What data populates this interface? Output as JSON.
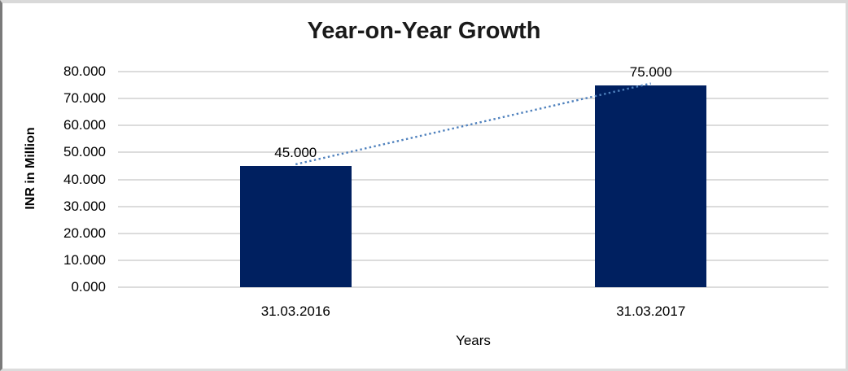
{
  "window": {
    "background": "#ffffff",
    "frame_border_color": "#d9d9d9",
    "frame_border_left_color": "#7a7a7a"
  },
  "chart_data": {
    "type": "bar",
    "title": "Year-on-Year Growth",
    "xlabel": "Years",
    "ylabel": "INR in Million",
    "categories": [
      "31.03.2016",
      "31.03.2017"
    ],
    "values": [
      45,
      75
    ],
    "value_labels": [
      "45.000",
      "75.000"
    ],
    "ylim": [
      0,
      80
    ],
    "ytick_step": 10,
    "ytick_labels": [
      "80.000",
      "70.000",
      "60.000",
      "50.000",
      "40.000",
      "30.000",
      "20.000",
      "10.000",
      "0.000"
    ],
    "grid": true,
    "legend_position": "none",
    "bar_color": "#002060",
    "gridline_color": "#dcdcdc",
    "title_color": "#1a1a1a",
    "text_color": "#000000",
    "trendline": {
      "style": "dotted",
      "color": "#4f81bd",
      "from_value": 45,
      "to_value": 75
    }
  }
}
